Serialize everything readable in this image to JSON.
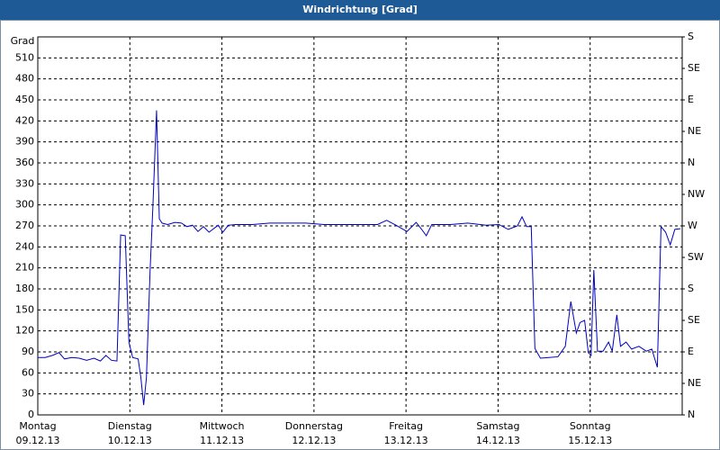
{
  "chart_data": {
    "type": "line",
    "title": "Windrichtung [Grad]",
    "y_label": "Grad",
    "x": [
      0.0,
      0.08,
      0.16,
      0.23,
      0.29,
      0.37,
      0.45,
      0.53,
      0.61,
      0.68,
      0.74,
      0.8,
      0.86,
      0.9,
      0.95,
      0.99,
      1.03,
      1.09,
      1.12,
      1.15,
      1.18,
      1.22,
      1.25,
      1.29,
      1.32,
      1.35,
      1.41,
      1.49,
      1.56,
      1.62,
      1.68,
      1.74,
      1.8,
      1.86,
      1.92,
      1.96,
      2.01,
      2.07,
      2.15,
      2.33,
      2.52,
      2.72,
      2.91,
      3.11,
      3.3,
      3.5,
      3.69,
      3.79,
      3.89,
      4.01,
      4.11,
      4.17,
      4.22,
      4.28,
      4.48,
      4.67,
      4.87,
      5.01,
      5.11,
      5.21,
      5.26,
      5.31,
      5.36,
      5.4,
      5.46,
      5.55,
      5.65,
      5.73,
      5.79,
      5.85,
      5.89,
      5.94,
      5.98,
      6.01,
      6.04,
      6.08,
      6.14,
      6.2,
      6.24,
      6.29,
      6.33,
      6.39,
      6.45,
      6.53,
      6.61,
      6.67,
      6.73,
      6.77,
      6.82,
      6.87,
      6.92,
      6.98
    ],
    "series": [
      {
        "color": "#0000c0",
        "values": [
          82,
          82,
          85,
          89,
          80,
          82,
          81,
          78,
          81,
          77,
          85,
          78,
          77,
          257,
          256,
          104,
          82,
          80,
          53,
          14,
          53,
          207,
          297,
          435,
          280,
          274,
          272,
          275,
          274,
          269,
          271,
          262,
          269,
          261,
          267,
          271,
          261,
          271,
          272,
          272,
          274,
          274,
          274,
          272,
          272,
          272,
          272,
          278,
          271,
          262,
          275,
          265,
          256,
          272,
          272,
          274,
          271,
          272,
          265,
          270,
          283,
          269,
          269,
          95,
          81,
          82,
          83,
          98,
          162,
          117,
          132,
          135,
          89,
          85,
          207,
          91,
          91,
          104,
          91,
          143,
          98,
          104,
          94,
          98,
          91,
          94,
          68,
          269,
          261,
          243,
          265,
          266
        ]
      }
    ],
    "xlim": [
      0,
      7
    ],
    "xticks": [
      {
        "value": 0,
        "label": "Montag"
      },
      {
        "value": 1,
        "label": "Dienstag"
      },
      {
        "value": 2,
        "label": "Mittwoch"
      },
      {
        "value": 3,
        "label": "Donnerstag"
      },
      {
        "value": 4,
        "label": "Freitag"
      },
      {
        "value": 5,
        "label": "Samstag"
      },
      {
        "value": 6,
        "label": "Sonntag"
      }
    ],
    "xtick_dates": [
      "09.12.13",
      "10.12.13",
      "11.12.13",
      "12.12.13",
      "13.12.13",
      "14.12.13",
      "15.12.13"
    ],
    "ylim": [
      0,
      540
    ],
    "yticks": [
      0,
      30,
      60,
      90,
      120,
      150,
      180,
      210,
      240,
      270,
      300,
      330,
      360,
      390,
      420,
      450,
      480,
      510
    ],
    "y2lim": [
      0,
      540
    ],
    "y2ticks": [
      {
        "value": 0,
        "label": "N"
      },
      {
        "value": 45,
        "label": "NE"
      },
      {
        "value": 90,
        "label": "E"
      },
      {
        "value": 135,
        "label": "SE"
      },
      {
        "value": 180,
        "label": "S"
      },
      {
        "value": 225,
        "label": "SW"
      },
      {
        "value": 270,
        "label": "W"
      },
      {
        "value": 315,
        "label": "NW"
      },
      {
        "value": 360,
        "label": "N"
      },
      {
        "value": 405,
        "label": "NE"
      },
      {
        "value": 450,
        "label": "E"
      },
      {
        "value": 495,
        "label": "SE"
      },
      {
        "value": 540,
        "label": "S"
      }
    ],
    "grid": true
  }
}
